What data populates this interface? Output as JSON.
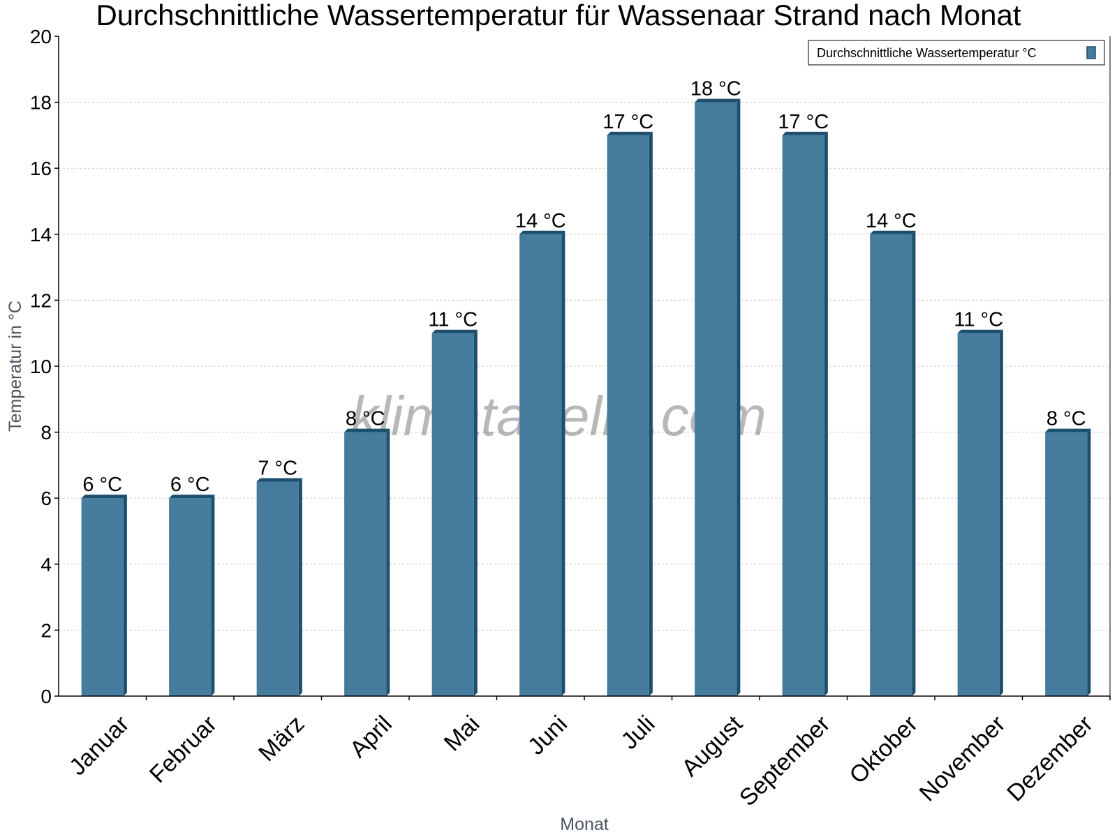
{
  "chart_data": {
    "type": "bar",
    "title": "Durchschnittliche Wassertemperatur für Wassenaar Strand nach Monat",
    "xlabel": "Monat",
    "ylabel": "Temperatur in °C",
    "categories": [
      "Januar",
      "Februar",
      "März",
      "April",
      "Mai",
      "Juni",
      "Juli",
      "August",
      "September",
      "Oktober",
      "November",
      "Dezember"
    ],
    "series": [
      {
        "name": "Durchschnittliche Wassertemperatur °C",
        "values": [
          6,
          6,
          6.5,
          8,
          11,
          14,
          17,
          18,
          17,
          14,
          11,
          8
        ],
        "labels": [
          "6 °C",
          "6 °C",
          "7 °C",
          "8 °C",
          "11 °C",
          "14 °C",
          "17 °C",
          "18 °C",
          "17 °C",
          "14 °C",
          "11 °C",
          "8 °C"
        ],
        "color": "#457b9d",
        "shade_color": "#1d4e6e"
      }
    ],
    "ylim": [
      0,
      20
    ],
    "yticks": [
      0,
      2,
      4,
      6,
      8,
      10,
      12,
      14,
      16,
      18,
      20
    ],
    "grid": true,
    "legend_position": "top-right"
  },
  "watermark": "klimatabelle.com"
}
